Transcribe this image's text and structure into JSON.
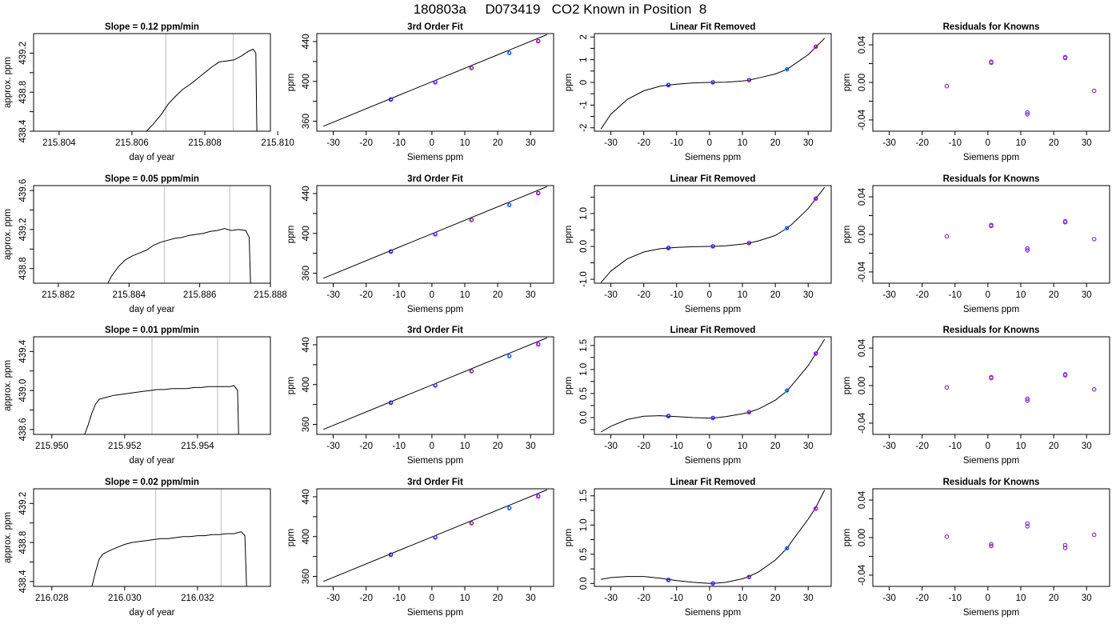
{
  "title": "180803a     D073419   CO2 Known in Position  8",
  "colors": {
    "axis": "#000000",
    "curve": "#000000",
    "vline": "#c8c8c8",
    "point_blue": "#2020ff",
    "point_purple": "#8a2be2",
    "point_red": "#ff2020",
    "point_cyan": "#00c8ff",
    "point_magenta": "#ff00ff"
  },
  "chart_data": [
    {
      "id": "r1-drift",
      "type": "line",
      "title": "Slope =  0.12  ppm/min",
      "xlabel": "day of year",
      "ylabel": "approx. ppm",
      "xlim": [
        215.8033,
        215.8098
      ],
      "ylim": [
        438.4,
        439.4
      ],
      "xticks": [
        "215.804",
        "215.806",
        "215.808",
        "215.810"
      ],
      "xtick_values": [
        215.804,
        215.806,
        215.808,
        215.81
      ],
      "yticks": [
        "438.4",
        "438.8",
        "439.2"
      ],
      "ytick_values": [
        438.4,
        438.8,
        439.2
      ],
      "vlines": [
        215.80693,
        215.80878
      ],
      "x": [
        215.8064,
        215.8066,
        215.8068,
        215.807,
        215.8072,
        215.8074,
        215.8076,
        215.8078,
        215.808,
        215.8082,
        215.8084,
        215.8086,
        215.8088,
        215.809,
        215.8092,
        215.80933,
        215.8094,
        215.80943
      ],
      "y": [
        438.4,
        438.48,
        438.57,
        438.68,
        438.76,
        438.83,
        438.88,
        438.94,
        439.0,
        439.06,
        439.11,
        439.12,
        439.13,
        439.17,
        439.22,
        439.24,
        439.2,
        438.3
      ]
    },
    {
      "id": "r1-fit",
      "type": "scatter",
      "title": "3rd Order Fit",
      "xlabel": "Siemens ppm",
      "ylabel": "ppm",
      "xlim": [
        -35,
        37
      ],
      "ylim": [
        350,
        448
      ],
      "xticks": [
        "-30",
        "-20",
        "-10",
        "0",
        "10",
        "20",
        "30"
      ],
      "xtick_values": [
        -30,
        -20,
        -10,
        0,
        10,
        20,
        30
      ],
      "yticks": [
        "360",
        "400",
        "440"
      ],
      "ytick_values": [
        360,
        400,
        440
      ],
      "line": {
        "x": [
          -33,
          35
        ],
        "y": [
          355,
          447
        ]
      },
      "x": [
        -12.5,
        1,
        12,
        23.5,
        32.3
      ],
      "y": [
        381.8,
        399.1,
        413.4,
        428.4,
        440.3
      ]
    },
    {
      "id": "r1-lin",
      "type": "scatter",
      "title": "Linear Fit Removed",
      "xlabel": "Siemens ppm",
      "ylabel": "ppm",
      "xlim": [
        -35,
        37
      ],
      "ylim": [
        -2.15,
        2.15
      ],
      "xticks": [
        "-30",
        "-20",
        "-10",
        "0",
        "10",
        "20",
        "30"
      ],
      "xtick_values": [
        -30,
        -20,
        -10,
        0,
        10,
        20,
        30
      ],
      "yticks": [
        "-2",
        "-1",
        "0",
        "1",
        "2"
      ],
      "ytick_values": [
        -2,
        -1,
        0,
        1,
        2
      ],
      "curve": {
        "x": [
          -33,
          -30,
          -25,
          -20,
          -15,
          -12.5,
          -10,
          -5,
          0,
          1,
          5,
          10,
          12,
          15,
          20,
          23.5,
          25,
          30,
          32.3,
          35
        ],
        "y": [
          -2.05,
          -1.4,
          -0.75,
          -0.37,
          -0.17,
          -0.12,
          -0.08,
          -0.02,
          0,
          0,
          0.01,
          0.06,
          0.1,
          0.2,
          0.37,
          0.57,
          0.72,
          1.22,
          1.55,
          1.95
        ]
      },
      "x": [
        -12.5,
        1,
        12,
        23.5,
        32.3
      ],
      "y": [
        -0.12,
        0.0,
        0.1,
        0.57,
        1.57
      ]
    },
    {
      "id": "r1-res",
      "type": "scatter",
      "title": "Residuals for Knowns",
      "xlabel": "Siemens ppm",
      "ylabel": "ppm",
      "xlim": [
        -35,
        37
      ],
      "ylim": [
        -0.052,
        0.052
      ],
      "xticks": [
        "-30",
        "-20",
        "-10",
        "0",
        "10",
        "20",
        "30"
      ],
      "xtick_values": [
        -30,
        -20,
        -10,
        0,
        10,
        20,
        30
      ],
      "yticks": [
        "-0.04",
        "0.00",
        "0.04"
      ],
      "ytick_values": [
        -0.04,
        0.0,
        0.04
      ],
      "x": [
        -12.5,
        1,
        1,
        12,
        12,
        23.5,
        23.5,
        32.3
      ],
      "y": [
        -0.004,
        0.022,
        0.021,
        -0.032,
        -0.034,
        0.027,
        0.026,
        -0.009
      ]
    },
    {
      "id": "r2-drift",
      "type": "line",
      "title": "Slope =  0.05  ppm/min",
      "xlabel": "day of year",
      "ylabel": "approx. ppm",
      "xlim": [
        215.8813,
        215.888
      ],
      "ylim": [
        438.65,
        439.65
      ],
      "xticks": [
        "215.882",
        "215.884",
        "215.886",
        "215.888"
      ],
      "xtick_values": [
        215.882,
        215.884,
        215.886,
        215.888
      ],
      "yticks": [
        "438.8",
        "439.2",
        "439.6"
      ],
      "ytick_values": [
        438.8,
        439.2,
        439.6
      ],
      "vlines": [
        215.885,
        215.88685
      ],
      "x": [
        215.8834,
        215.8835,
        215.8837,
        215.8839,
        215.8841,
        215.8843,
        215.8845,
        215.8847,
        215.8849,
        215.8851,
        215.8853,
        215.8855,
        215.8857,
        215.8859,
        215.8861,
        215.8863,
        215.8865,
        215.8867,
        215.8869,
        215.8871,
        215.8873,
        215.8874,
        215.88745
      ],
      "y": [
        438.65,
        438.72,
        438.82,
        438.89,
        438.93,
        438.96,
        438.99,
        439.04,
        439.07,
        439.09,
        439.11,
        439.12,
        439.14,
        439.15,
        439.16,
        439.18,
        439.19,
        439.21,
        439.19,
        439.2,
        439.19,
        439.12,
        438.5
      ]
    },
    {
      "id": "r2-fit",
      "type": "scatter",
      "title": "3rd Order Fit",
      "xlabel": "Siemens ppm",
      "ylabel": "ppm",
      "xlim": [
        -35,
        37
      ],
      "ylim": [
        350,
        448
      ],
      "xticks": [
        "-30",
        "-20",
        "-10",
        "0",
        "10",
        "20",
        "30"
      ],
      "xtick_values": [
        -30,
        -20,
        -10,
        0,
        10,
        20,
        30
      ],
      "yticks": [
        "360",
        "400",
        "440"
      ],
      "ytick_values": [
        360,
        400,
        440
      ],
      "line": {
        "x": [
          -33,
          35
        ],
        "y": [
          355,
          447
        ]
      },
      "x": [
        -12.5,
        1,
        12,
        23.5,
        32.3
      ],
      "y": [
        381.8,
        399.1,
        413.4,
        428.4,
        440.3
      ]
    },
    {
      "id": "r2-lin",
      "type": "scatter",
      "title": "Linear Fit Removed",
      "xlabel": "Siemens ppm",
      "ylabel": "ppm",
      "xlim": [
        -35,
        37
      ],
      "ylim": [
        -1.12,
        1.85
      ],
      "xticks": [
        "-30",
        "-20",
        "-10",
        "0",
        "10",
        "20",
        "30"
      ],
      "xtick_values": [
        -30,
        -20,
        -10,
        0,
        10,
        20,
        30
      ],
      "yticks": [
        "-1.0",
        "0.0",
        "1.0"
      ],
      "ytick_values": [
        -1,
        0,
        1
      ],
      "curve": {
        "x": [
          -33,
          -30,
          -25,
          -20,
          -15,
          -12.5,
          -10,
          -5,
          0,
          1,
          5,
          10,
          12,
          15,
          20,
          23.5,
          25,
          30,
          32.3,
          35
        ],
        "y": [
          -1.1,
          -0.75,
          -0.38,
          -0.17,
          -0.07,
          -0.05,
          -0.03,
          -0.01,
          0,
          0,
          0.02,
          0.07,
          0.1,
          0.17,
          0.33,
          0.55,
          0.67,
          1.15,
          1.45,
          1.8
        ]
      },
      "x": [
        -12.5,
        1,
        12,
        23.5,
        32.3
      ],
      "y": [
        -0.05,
        0.0,
        0.1,
        0.55,
        1.45
      ]
    },
    {
      "id": "r2-res",
      "type": "scatter",
      "title": "Residuals for Knowns",
      "xlabel": "Siemens ppm",
      "ylabel": "ppm",
      "xlim": [
        -35,
        37
      ],
      "ylim": [
        -0.052,
        0.052
      ],
      "xticks": [
        "-30",
        "-20",
        "-10",
        "0",
        "10",
        "20",
        "30"
      ],
      "xtick_values": [
        -30,
        -20,
        -10,
        0,
        10,
        20,
        30
      ],
      "yticks": [
        "-0.04",
        "0.00",
        "0.04"
      ],
      "ytick_values": [
        -0.04,
        0.0,
        0.04
      ],
      "x": [
        -12.5,
        1,
        1,
        12,
        12,
        23.5,
        23.5,
        32.3
      ],
      "y": [
        -0.002,
        0.01,
        0.009,
        -0.015,
        -0.017,
        0.014,
        0.013,
        -0.005
      ]
    },
    {
      "id": "r3-drift",
      "type": "line",
      "title": "Slope =  0.01  ppm/min",
      "xlabel": "day of year",
      "ylabel": "approx. ppm",
      "xlim": [
        215.9495,
        215.956
      ],
      "ylim": [
        438.55,
        439.55
      ],
      "xticks": [
        "215.950",
        "215.952",
        "215.954"
      ],
      "xtick_values": [
        215.95,
        215.952,
        215.954
      ],
      "yticks": [
        "438.6",
        "439.0",
        "439.4"
      ],
      "ytick_values": [
        438.6,
        439.0,
        439.4
      ],
      "vlines": [
        215.95275,
        215.95455
      ],
      "x": [
        215.9509,
        215.951,
        215.9511,
        215.9512,
        215.9513,
        215.9515,
        215.9517,
        215.9519,
        215.9521,
        215.9523,
        215.9525,
        215.9527,
        215.9529,
        215.9531,
        215.9533,
        215.9535,
        215.9537,
        215.9539,
        215.9541,
        215.9543,
        215.9545,
        215.9547,
        215.9549,
        215.955,
        215.9551,
        215.95513
      ],
      "y": [
        438.55,
        438.65,
        438.77,
        438.86,
        438.91,
        438.93,
        438.95,
        438.96,
        438.97,
        438.98,
        438.99,
        439.0,
        439.01,
        439.01,
        439.02,
        439.02,
        439.02,
        439.03,
        439.03,
        439.04,
        439.04,
        439.04,
        439.04,
        439.05,
        439.0,
        438.5
      ]
    },
    {
      "id": "r3-fit",
      "type": "scatter",
      "title": "3rd Order Fit",
      "xlabel": "Siemens ppm",
      "ylabel": "ppm",
      "xlim": [
        -35,
        37
      ],
      "ylim": [
        350,
        448
      ],
      "xticks": [
        "-30",
        "-20",
        "-10",
        "0",
        "10",
        "20",
        "30"
      ],
      "xtick_values": [
        -30,
        -20,
        -10,
        0,
        10,
        20,
        30
      ],
      "yticks": [
        "360",
        "400",
        "440"
      ],
      "ytick_values": [
        360,
        400,
        440
      ],
      "line": {
        "x": [
          -33,
          35
        ],
        "y": [
          355,
          447
        ]
      },
      "x": [
        -12.5,
        1,
        12,
        23.5,
        32.3
      ],
      "y": [
        381.8,
        399.1,
        413.4,
        428.4,
        440.3
      ]
    },
    {
      "id": "r3-lin",
      "type": "scatter",
      "title": "Linear Fit Removed",
      "xlabel": "Siemens ppm",
      "ylabel": "ppm",
      "xlim": [
        -35,
        37
      ],
      "ylim": [
        -0.35,
        1.68
      ],
      "xticks": [
        "-30",
        "-20",
        "-10",
        "0",
        "10",
        "20",
        "30"
      ],
      "xtick_values": [
        -30,
        -20,
        -10,
        0,
        10,
        20,
        30
      ],
      "yticks": [
        "0.0",
        "0.5",
        "1.0",
        "1.5"
      ],
      "ytick_values": [
        0,
        0.5,
        1.0,
        1.5
      ],
      "curve": {
        "x": [
          -33,
          -30,
          -25,
          -20,
          -15,
          -12.5,
          -10,
          -5,
          0,
          1,
          5,
          10,
          12,
          15,
          20,
          23.5,
          25,
          30,
          32.3,
          35
        ],
        "y": [
          -0.3,
          -0.18,
          -0.04,
          0.03,
          0.04,
          0.03,
          0.02,
          0.0,
          -0.01,
          -0.01,
          0.02,
          0.08,
          0.11,
          0.18,
          0.36,
          0.55,
          0.67,
          1.08,
          1.33,
          1.63
        ]
      },
      "x": [
        -12.5,
        1,
        12,
        23.5,
        32.3
      ],
      "y": [
        0.03,
        -0.01,
        0.11,
        0.56,
        1.33
      ]
    },
    {
      "id": "r3-res",
      "type": "scatter",
      "title": "Residuals for Knowns",
      "xlabel": "Siemens ppm",
      "ylabel": "ppm",
      "xlim": [
        -35,
        37
      ],
      "ylim": [
        -0.052,
        0.052
      ],
      "xticks": [
        "-30",
        "-20",
        "-10",
        "0",
        "10",
        "20",
        "30"
      ],
      "xtick_values": [
        -30,
        -20,
        -10,
        0,
        10,
        20,
        30
      ],
      "yticks": [
        "-0.04",
        "0.00",
        "0.04"
      ],
      "ytick_values": [
        -0.04,
        0.0,
        0.04
      ],
      "x": [
        -12.5,
        1,
        1,
        12,
        12,
        23.5,
        23.5,
        32.3
      ],
      "y": [
        -0.002,
        0.009,
        0.008,
        -0.014,
        -0.016,
        0.012,
        0.011,
        -0.004
      ]
    },
    {
      "id": "r4-drift",
      "type": "line",
      "title": "Slope =  0.02  ppm/min",
      "xlabel": "day of year",
      "ylabel": "approx. ppm",
      "xlim": [
        216.0275,
        216.034
      ],
      "ylim": [
        438.35,
        439.35
      ],
      "xticks": [
        "216.028",
        "216.030",
        "216.032"
      ],
      "xtick_values": [
        216.028,
        216.03,
        216.032
      ],
      "yticks": [
        "438.4",
        "438.8",
        "439.2"
      ],
      "ytick_values": [
        438.4,
        438.8,
        439.2
      ],
      "vlines": [
        216.03085,
        216.03265
      ],
      "x": [
        216.0291,
        216.0292,
        216.0293,
        216.0294,
        216.0296,
        216.0298,
        216.03,
        216.0302,
        216.0304,
        216.0306,
        216.0308,
        216.031,
        216.0312,
        216.0314,
        216.0316,
        216.0318,
        216.032,
        216.0322,
        216.0324,
        216.0326,
        216.0328,
        216.033,
        216.0332,
        216.0333,
        216.03335
      ],
      "y": [
        438.35,
        438.5,
        438.63,
        438.68,
        438.72,
        438.75,
        438.78,
        438.8,
        438.81,
        438.82,
        438.83,
        438.84,
        438.84,
        438.85,
        438.86,
        438.86,
        438.87,
        438.87,
        438.88,
        438.88,
        438.89,
        438.89,
        438.91,
        438.87,
        438.3
      ]
    },
    {
      "id": "r4-fit",
      "type": "scatter",
      "title": "3rd Order Fit",
      "xlabel": "Siemens ppm",
      "ylabel": "ppm",
      "xlim": [
        -35,
        37
      ],
      "ylim": [
        350,
        448
      ],
      "xticks": [
        "-30",
        "-20",
        "-10",
        "0",
        "10",
        "20",
        "30"
      ],
      "xtick_values": [
        -30,
        -20,
        -10,
        0,
        10,
        20,
        30
      ],
      "yticks": [
        "360",
        "400",
        "440"
      ],
      "ytick_values": [
        360,
        400,
        440
      ],
      "line": {
        "x": [
          -33,
          35
        ],
        "y": [
          355,
          447
        ]
      },
      "x": [
        -12.5,
        1,
        12,
        23.5,
        32.3
      ],
      "y": [
        381.8,
        399.1,
        413.4,
        428.4,
        440.3
      ]
    },
    {
      "id": "r4-lin",
      "type": "scatter",
      "title": "Linear Fit Removed",
      "xlabel": "Siemens ppm",
      "ylabel": "ppm",
      "xlim": [
        -35,
        37
      ],
      "ylim": [
        -0.05,
        1.62
      ],
      "xticks": [
        "-30",
        "-20",
        "-10",
        "0",
        "10",
        "20",
        "30"
      ],
      "xtick_values": [
        -30,
        -20,
        -10,
        0,
        10,
        20,
        30
      ],
      "yticks": [
        "0.0",
        "0.5",
        "1.0",
        "1.5"
      ],
      "ytick_values": [
        0,
        0.5,
        1.0,
        1.5
      ],
      "curve": {
        "x": [
          -33,
          -30,
          -25,
          -20,
          -15,
          -12.5,
          -10,
          -5,
          0,
          1,
          5,
          10,
          12,
          15,
          20,
          23.5,
          25,
          30,
          32.3,
          35
        ],
        "y": [
          0.07,
          0.1,
          0.12,
          0.12,
          0.09,
          0.07,
          0.05,
          0.02,
          0.0,
          0.0,
          0.02,
          0.08,
          0.12,
          0.2,
          0.4,
          0.6,
          0.72,
          1.1,
          1.3,
          1.6
        ]
      },
      "x": [
        -12.5,
        1,
        12,
        23.5,
        32.3
      ],
      "y": [
        0.06,
        0.0,
        0.11,
        0.6,
        1.28
      ]
    },
    {
      "id": "r4-res",
      "type": "scatter",
      "title": "Residuals for Knowns",
      "xlabel": "Siemens ppm",
      "ylabel": "ppm",
      "xlim": [
        -35,
        37
      ],
      "ylim": [
        -0.052,
        0.052
      ],
      "xticks": [
        "-30",
        "-20",
        "-10",
        "0",
        "10",
        "20",
        "30"
      ],
      "xtick_values": [
        -30,
        -20,
        -10,
        0,
        10,
        20,
        30
      ],
      "yticks": [
        "-0.04",
        "0.00",
        "0.04"
      ],
      "ytick_values": [
        -0.04,
        0.0,
        0.04
      ],
      "x": [
        -12.5,
        1,
        1,
        12,
        12,
        23.5,
        23.5,
        32.3
      ],
      "y": [
        0.001,
        -0.007,
        -0.009,
        0.015,
        0.012,
        -0.008,
        -0.011,
        0.003
      ]
    }
  ]
}
